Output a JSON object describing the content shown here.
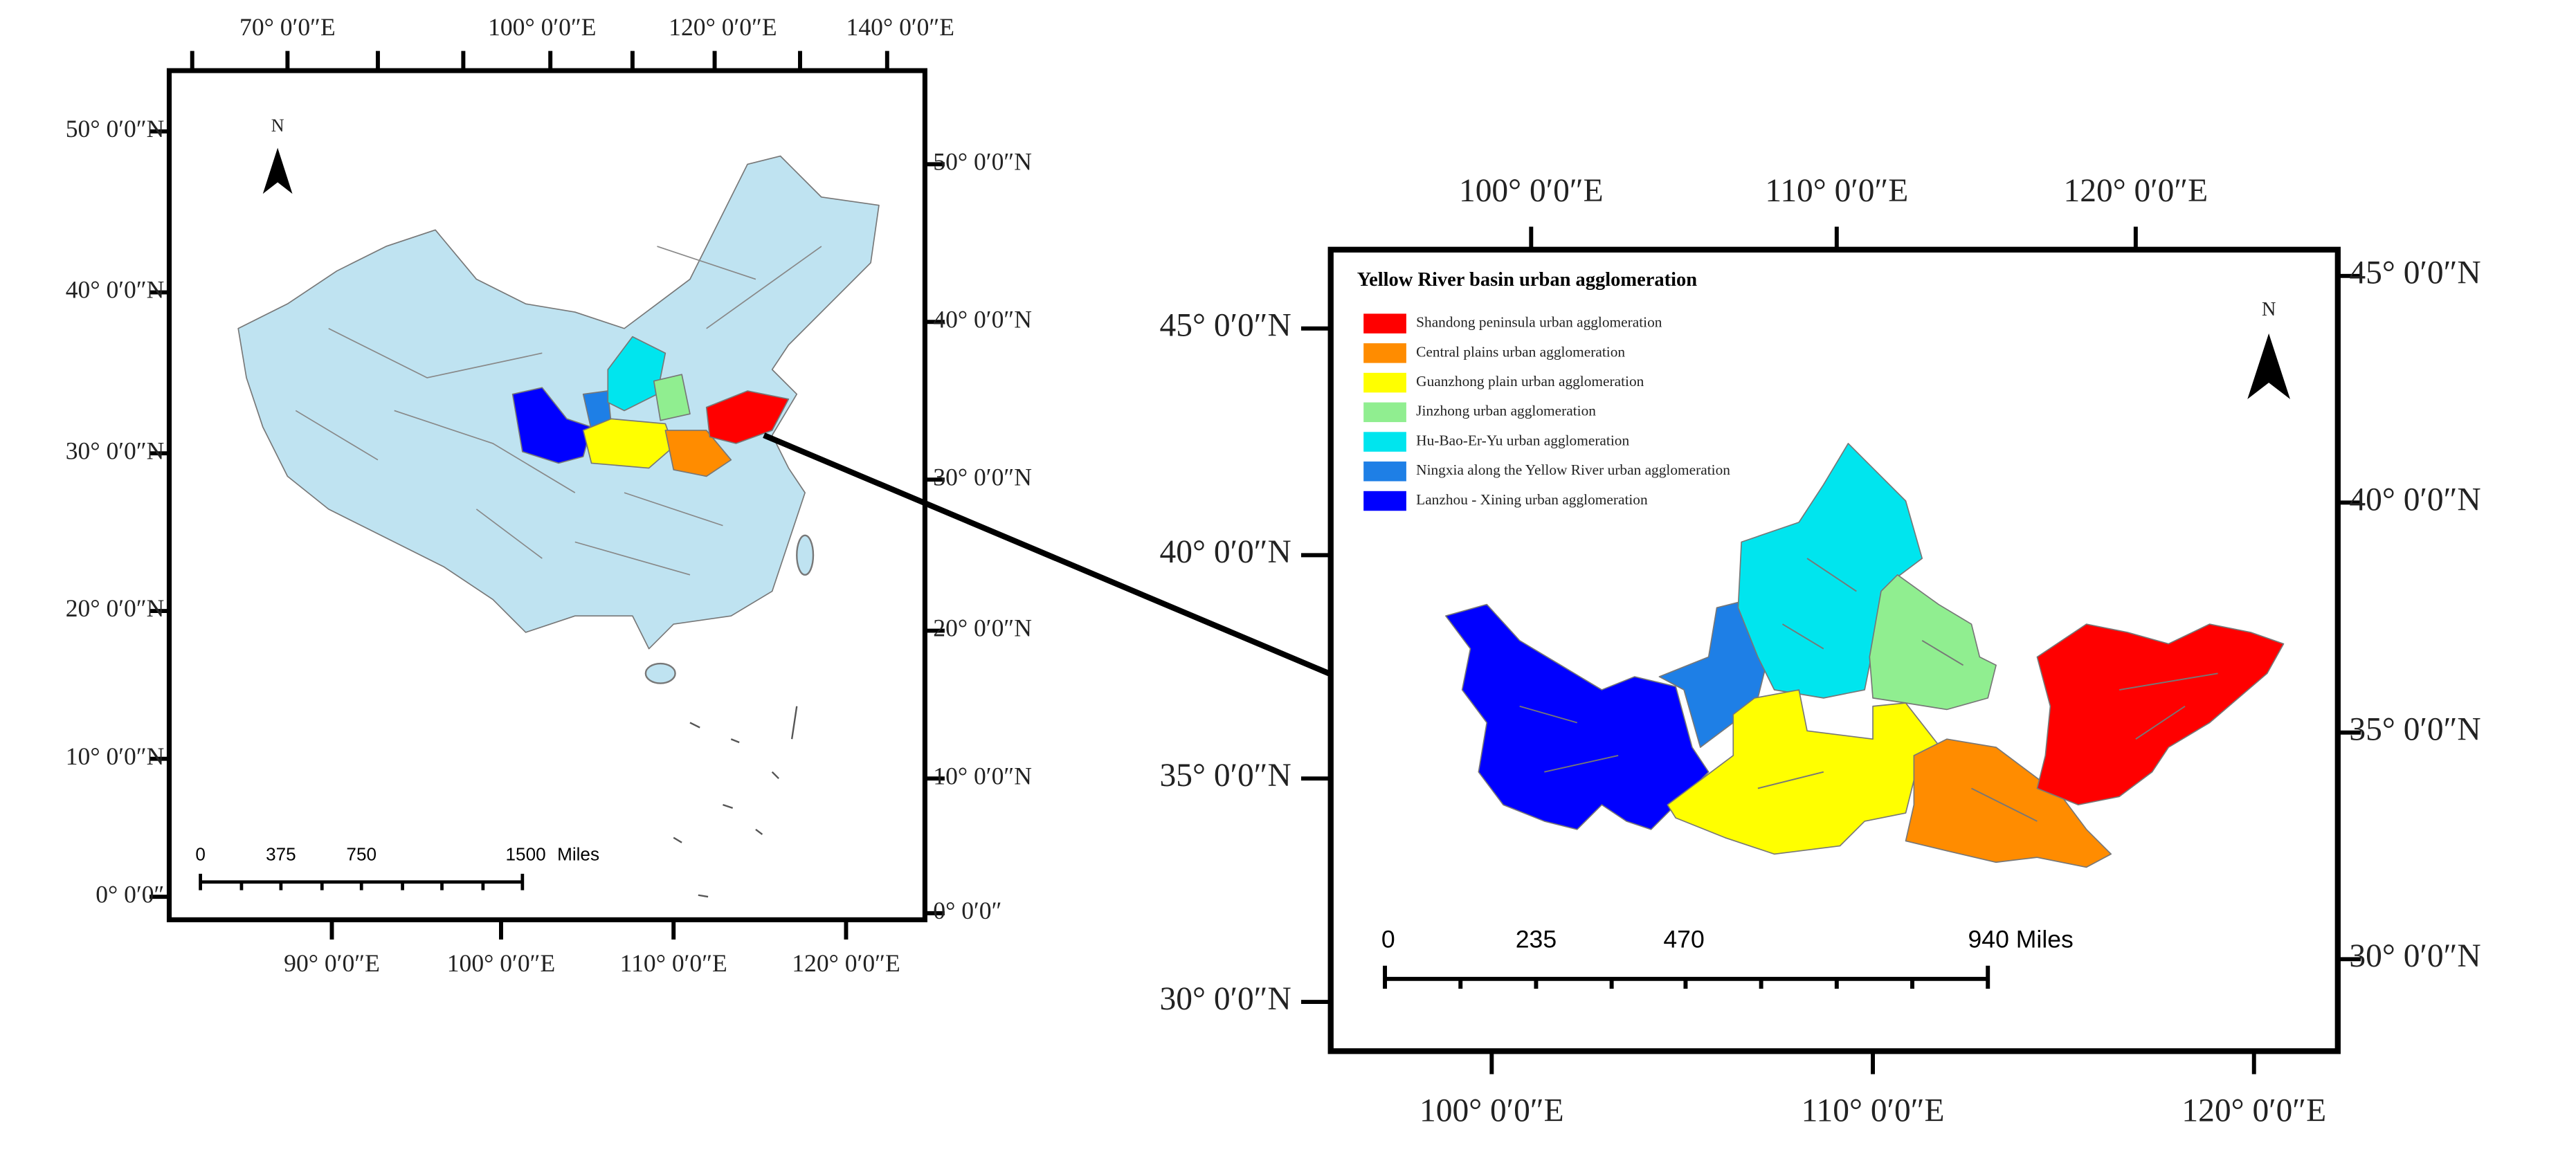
{
  "left_map": {
    "top_labels": [
      "70° 0′0″E",
      "100° 0′0″E",
      "120° 0′0″E",
      "140° 0′0″E"
    ],
    "bottom_labels": [
      "90° 0′0″E",
      "100° 0′0″E",
      "110° 0′0″E",
      "120° 0′0″E"
    ],
    "left_labels": [
      "50° 0′0″N",
      "40° 0′0″N",
      "30° 0′0″N",
      "20° 0′0″N",
      "10° 0′0″N",
      "0° 0′0″"
    ],
    "right_labels": [
      "50° 0′0″N",
      "40° 0′0″N",
      "30° 0′0″N",
      "20° 0′0″N",
      "10° 0′0″N",
      "0° 0′0″"
    ],
    "north": "N",
    "scale_labels": [
      "0",
      "375",
      "750",
      "1500",
      "Miles"
    ]
  },
  "right_map": {
    "title": "Yellow River basin urban agglomeration",
    "legend": [
      "Shandong peninsula urban agglomeration",
      "Central plains urban agglomeration",
      "Guanzhong plain urban agglomeration",
      "Jinzhong urban agglomeration",
      "Hu-Bao-Er-Yu urban agglomeration",
      "Ningxia along the Yellow River urban agglomeration",
      "Lanzhou - Xining urban agglomeration"
    ],
    "top_labels": [
      "100° 0′0″E",
      "110° 0′0″E",
      "120° 0′0″E"
    ],
    "bottom_labels": [
      "100° 0′0″E",
      "110° 0′0″E",
      "120° 0′0″E"
    ],
    "left_labels": [
      "45° 0′0″N",
      "40° 0′0″N",
      "35° 0′0″N",
      "30° 0′0″N"
    ],
    "right_labels": [
      "45° 0′0″N",
      "40° 0′0″N",
      "35° 0′0″N",
      "30° 0′0″N"
    ],
    "north": "N",
    "scale_labels": [
      "0",
      "235",
      "470",
      "940 Miles"
    ]
  }
}
